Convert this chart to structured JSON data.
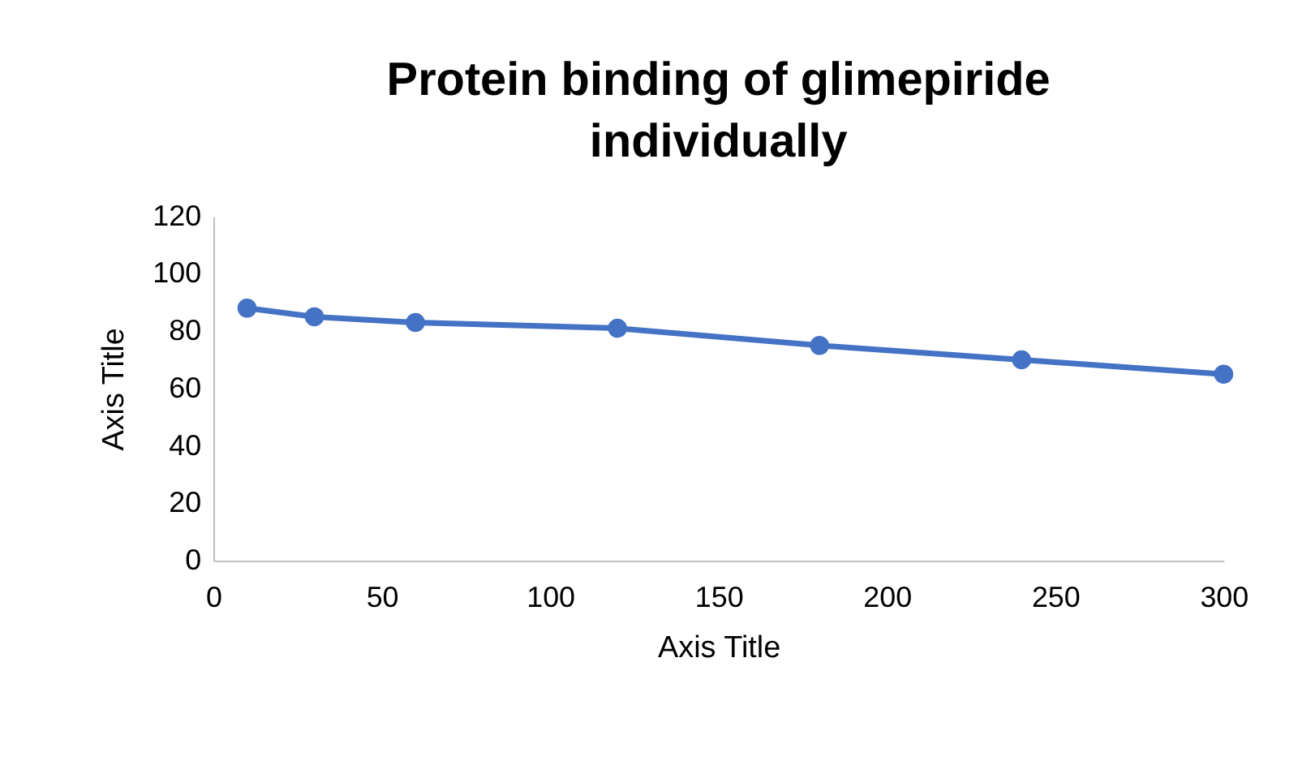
{
  "chart_data": {
    "type": "line",
    "title": "Protein binding of glimepiride individually",
    "xlabel": "Axis Title",
    "ylabel": "Axis Title",
    "x": [
      10,
      30,
      60,
      120,
      180,
      240,
      300
    ],
    "series": [
      {
        "color": "#4472c4",
        "values": [
          88,
          85,
          83,
          81,
          75,
          70,
          65
        ]
      }
    ],
    "xlim": [
      0,
      300
    ],
    "xticks": [
      0,
      50,
      100,
      150,
      200,
      250,
      300
    ],
    "ylim": [
      0,
      120
    ],
    "yticks": [
      0,
      20,
      40,
      60,
      80,
      100,
      120
    ],
    "grid": false,
    "marker": "circle",
    "line_style": "solid"
  }
}
